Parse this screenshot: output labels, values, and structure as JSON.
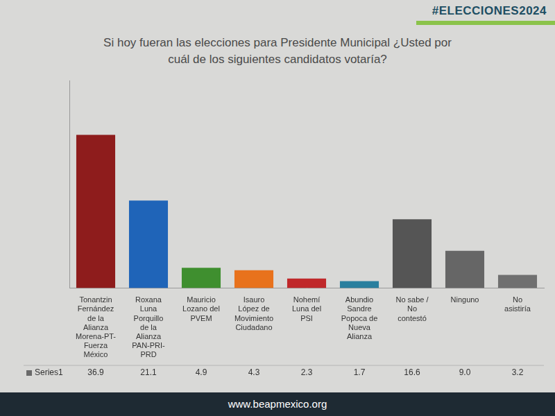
{
  "header": "#ELECCIONES2024",
  "footer": "www.beapmexico.org",
  "chart_data": {
    "type": "bar",
    "title": "Si hoy fueran las elecciones para Presidente Municipal ¿Usted por cuál de los siguientes candidatos votaría?",
    "categories": [
      "Tonantzin Fernández de la Alianza Morena-PT-Fuerza México",
      "Roxana Luna Porquillo de la Alianza PAN-PRI-PRD",
      "Mauricio Lozano del PVEM",
      "Isauro López de Movimiento Ciudadano",
      "Nohemí Luna del PSI",
      "Abundio Sandre Popoca de Nueva Alianza",
      "No sabe / No contestó",
      "Ninguno",
      "No asistiría"
    ],
    "series": [
      {
        "name": "Series1",
        "values": [
          36.9,
          21.1,
          4.9,
          4.3,
          2.3,
          1.7,
          16.6,
          9.0,
          3.2
        ],
        "value_labels": [
          "36.9",
          "21.1",
          "4.9",
          "4.3",
          "2.3",
          "1.7",
          "16.6",
          "9.0",
          "3.2"
        ],
        "colors": [
          "#8e1c1c",
          "#1f64b8",
          "#3f8f2f",
          "#e8721c",
          "#c0282a",
          "#2a7f9e",
          "#555555",
          "#666666",
          "#707070"
        ]
      }
    ],
    "ylim": [
      0,
      50
    ],
    "grid": false,
    "data_labels": true,
    "tick_labels": "x"
  }
}
